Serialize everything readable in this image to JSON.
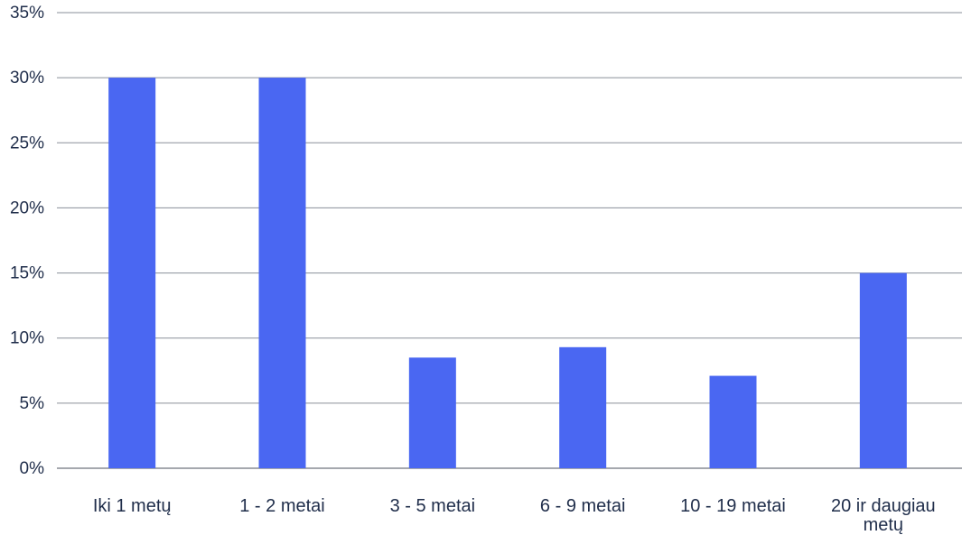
{
  "chart_data": {
    "type": "bar",
    "categories": [
      "Iki 1 metų",
      "1 - 2 metai",
      "3 - 5 metai",
      "6 - 9 metai",
      "10 - 19 metai",
      "20 ir daugiau metų"
    ],
    "values": [
      30,
      30,
      8.5,
      9.3,
      7.1,
      15
    ],
    "y_ticks": [
      "0%",
      "5%",
      "10%",
      "15%",
      "20%",
      "25%",
      "30%",
      "35%"
    ],
    "ylim": [
      0,
      35
    ],
    "grid": true,
    "bar_color": "#4a67f2"
  }
}
